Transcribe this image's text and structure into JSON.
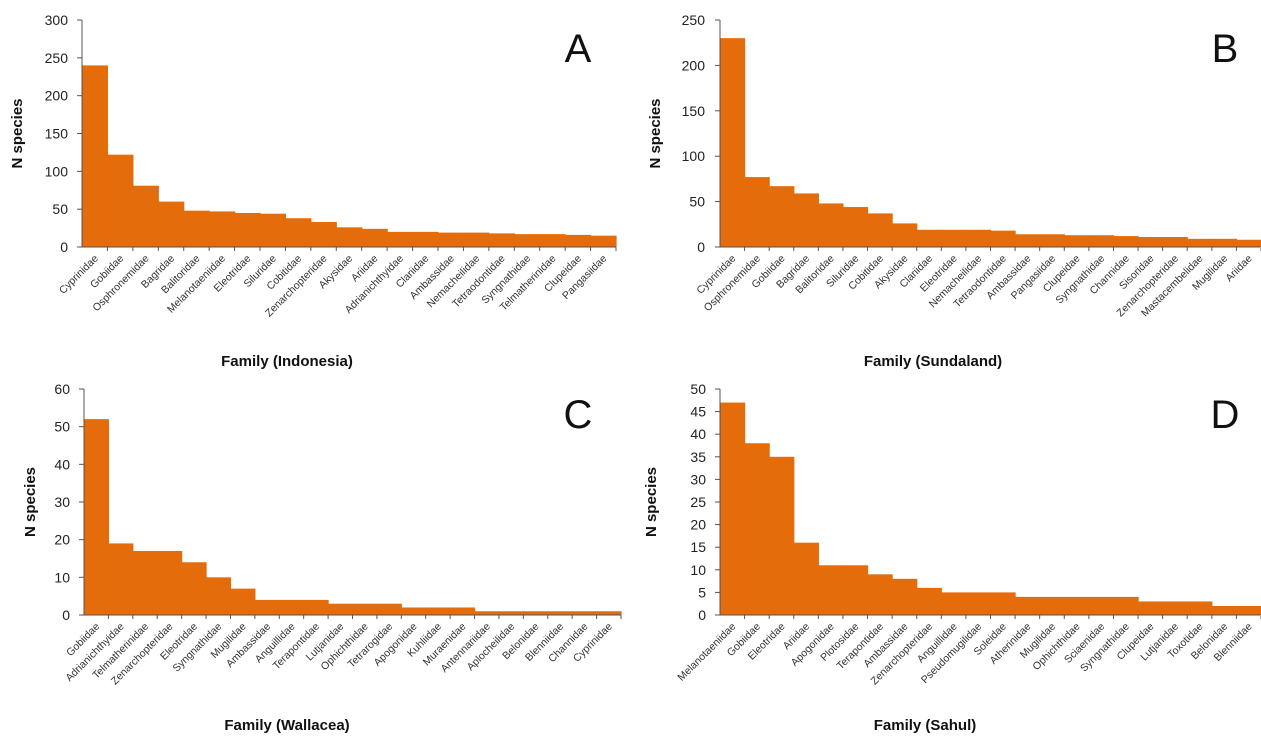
{
  "bar_color": "#E46C0A",
  "chart_data": [
    {
      "type": "bar",
      "panel_label": "A",
      "xlabel": "Family (Indonesia)",
      "ylabel": "N species",
      "ylim": [
        0,
        300
      ],
      "yticks": [
        0,
        50,
        100,
        150,
        200,
        250,
        300
      ],
      "grid": false,
      "categories": [
        "Cyprinidae",
        "Gobiidae",
        "Osphronemidae",
        "Bagridae",
        "Balitoridae",
        "Melanotaeniidae",
        "Eleotridae",
        "Siluridae",
        "Cobitidae",
        "Zenarchopteridae",
        "Akysidae",
        "Ariidae",
        "Adrianichthyidae",
        "Clariidae",
        "Ambassidae",
        "Nemacheilidae",
        "Tetraodontidae",
        "Syngnathidae",
        "Telmatherinidae",
        "Clupeidae",
        "Pangasiidae"
      ],
      "values": [
        240,
        122,
        81,
        60,
        48,
        47,
        45,
        44,
        38,
        33,
        26,
        24,
        20,
        20,
        19,
        19,
        18,
        17,
        17,
        16,
        15
      ]
    },
    {
      "type": "bar",
      "panel_label": "B",
      "xlabel": "Family (Sundaland)",
      "ylabel": "N species",
      "ylim": [
        0,
        250
      ],
      "yticks": [
        0,
        50,
        100,
        150,
        200,
        250
      ],
      "grid": false,
      "categories": [
        "Cyprinidae",
        "Osphronemidae",
        "Gobiidae",
        "Bagridae",
        "Balitoridae",
        "Siluridae",
        "Cobitidae",
        "Akysidae",
        "Clariidae",
        "Eleotridae",
        "Nemacheilidae",
        "Tetraodontidae",
        "Ambassidae",
        "Pangasiidae",
        "Clupeidae",
        "Syngnathidae",
        "Channidae",
        "Sisoridae",
        "Zenarchopteridae",
        "Mastacembelidae",
        "Mugilidae",
        "Ariidae"
      ],
      "values": [
        230,
        77,
        67,
        59,
        48,
        44,
        37,
        26,
        19,
        19,
        19,
        18,
        14,
        14,
        13,
        13,
        12,
        11,
        11,
        9,
        9,
        8
      ]
    },
    {
      "type": "bar",
      "panel_label": "C",
      "xlabel": "Family (Wallacea)",
      "ylabel": "N species",
      "ylim": [
        0,
        60
      ],
      "yticks": [
        0,
        10,
        20,
        30,
        40,
        50,
        60
      ],
      "grid": false,
      "categories": [
        "Gobiidae",
        "Adrianichthyidae",
        "Telmatherinidae",
        "Zenarchopteridae",
        "Eleotridae",
        "Syngnathidae",
        "Mugilidae",
        "Ambassidae",
        "Anguillidae",
        "Terapontidae",
        "Lutjanidae",
        "Ophichthidae",
        "Tetrarogidae",
        "Apogonidae",
        "Kuhliidae",
        "Muraenidae",
        "Antennariidae",
        "Aplocheilidae",
        "Belonidae",
        "Blenniidae",
        "Channidae",
        "Cyprinidae"
      ],
      "values": [
        52,
        19,
        17,
        17,
        14,
        10,
        7,
        4,
        4,
        4,
        3,
        3,
        3,
        2,
        2,
        2,
        1,
        1,
        1,
        1,
        1,
        1
      ]
    },
    {
      "type": "bar",
      "panel_label": "D",
      "xlabel": "Family (Sahul)",
      "ylabel": "N species",
      "ylim": [
        0,
        50
      ],
      "yticks": [
        0,
        5,
        10,
        15,
        20,
        25,
        30,
        35,
        40,
        45,
        50
      ],
      "grid": false,
      "categories": [
        "Melanotaeniidae",
        "Gobiidae",
        "Eleotridae",
        "Ariidae",
        "Apogonidae",
        "Plotosidae",
        "Terapontidae",
        "Ambassidae",
        "Zenarchopteridae",
        "Anguillidae",
        "Pseudomugilidae",
        "Soleidae",
        "Atherinidae",
        "Mugilidae",
        "Ophichthidae",
        "Sciaenidae",
        "Syngnathidae",
        "Clupeidae",
        "Lutjanidae",
        "Toxotidae",
        "Belonidae",
        "Blenniidae"
      ],
      "values": [
        47,
        38,
        35,
        16,
        11,
        11,
        9,
        8,
        6,
        5,
        5,
        5,
        4,
        4,
        4,
        4,
        4,
        3,
        3,
        3,
        2,
        2
      ]
    }
  ]
}
